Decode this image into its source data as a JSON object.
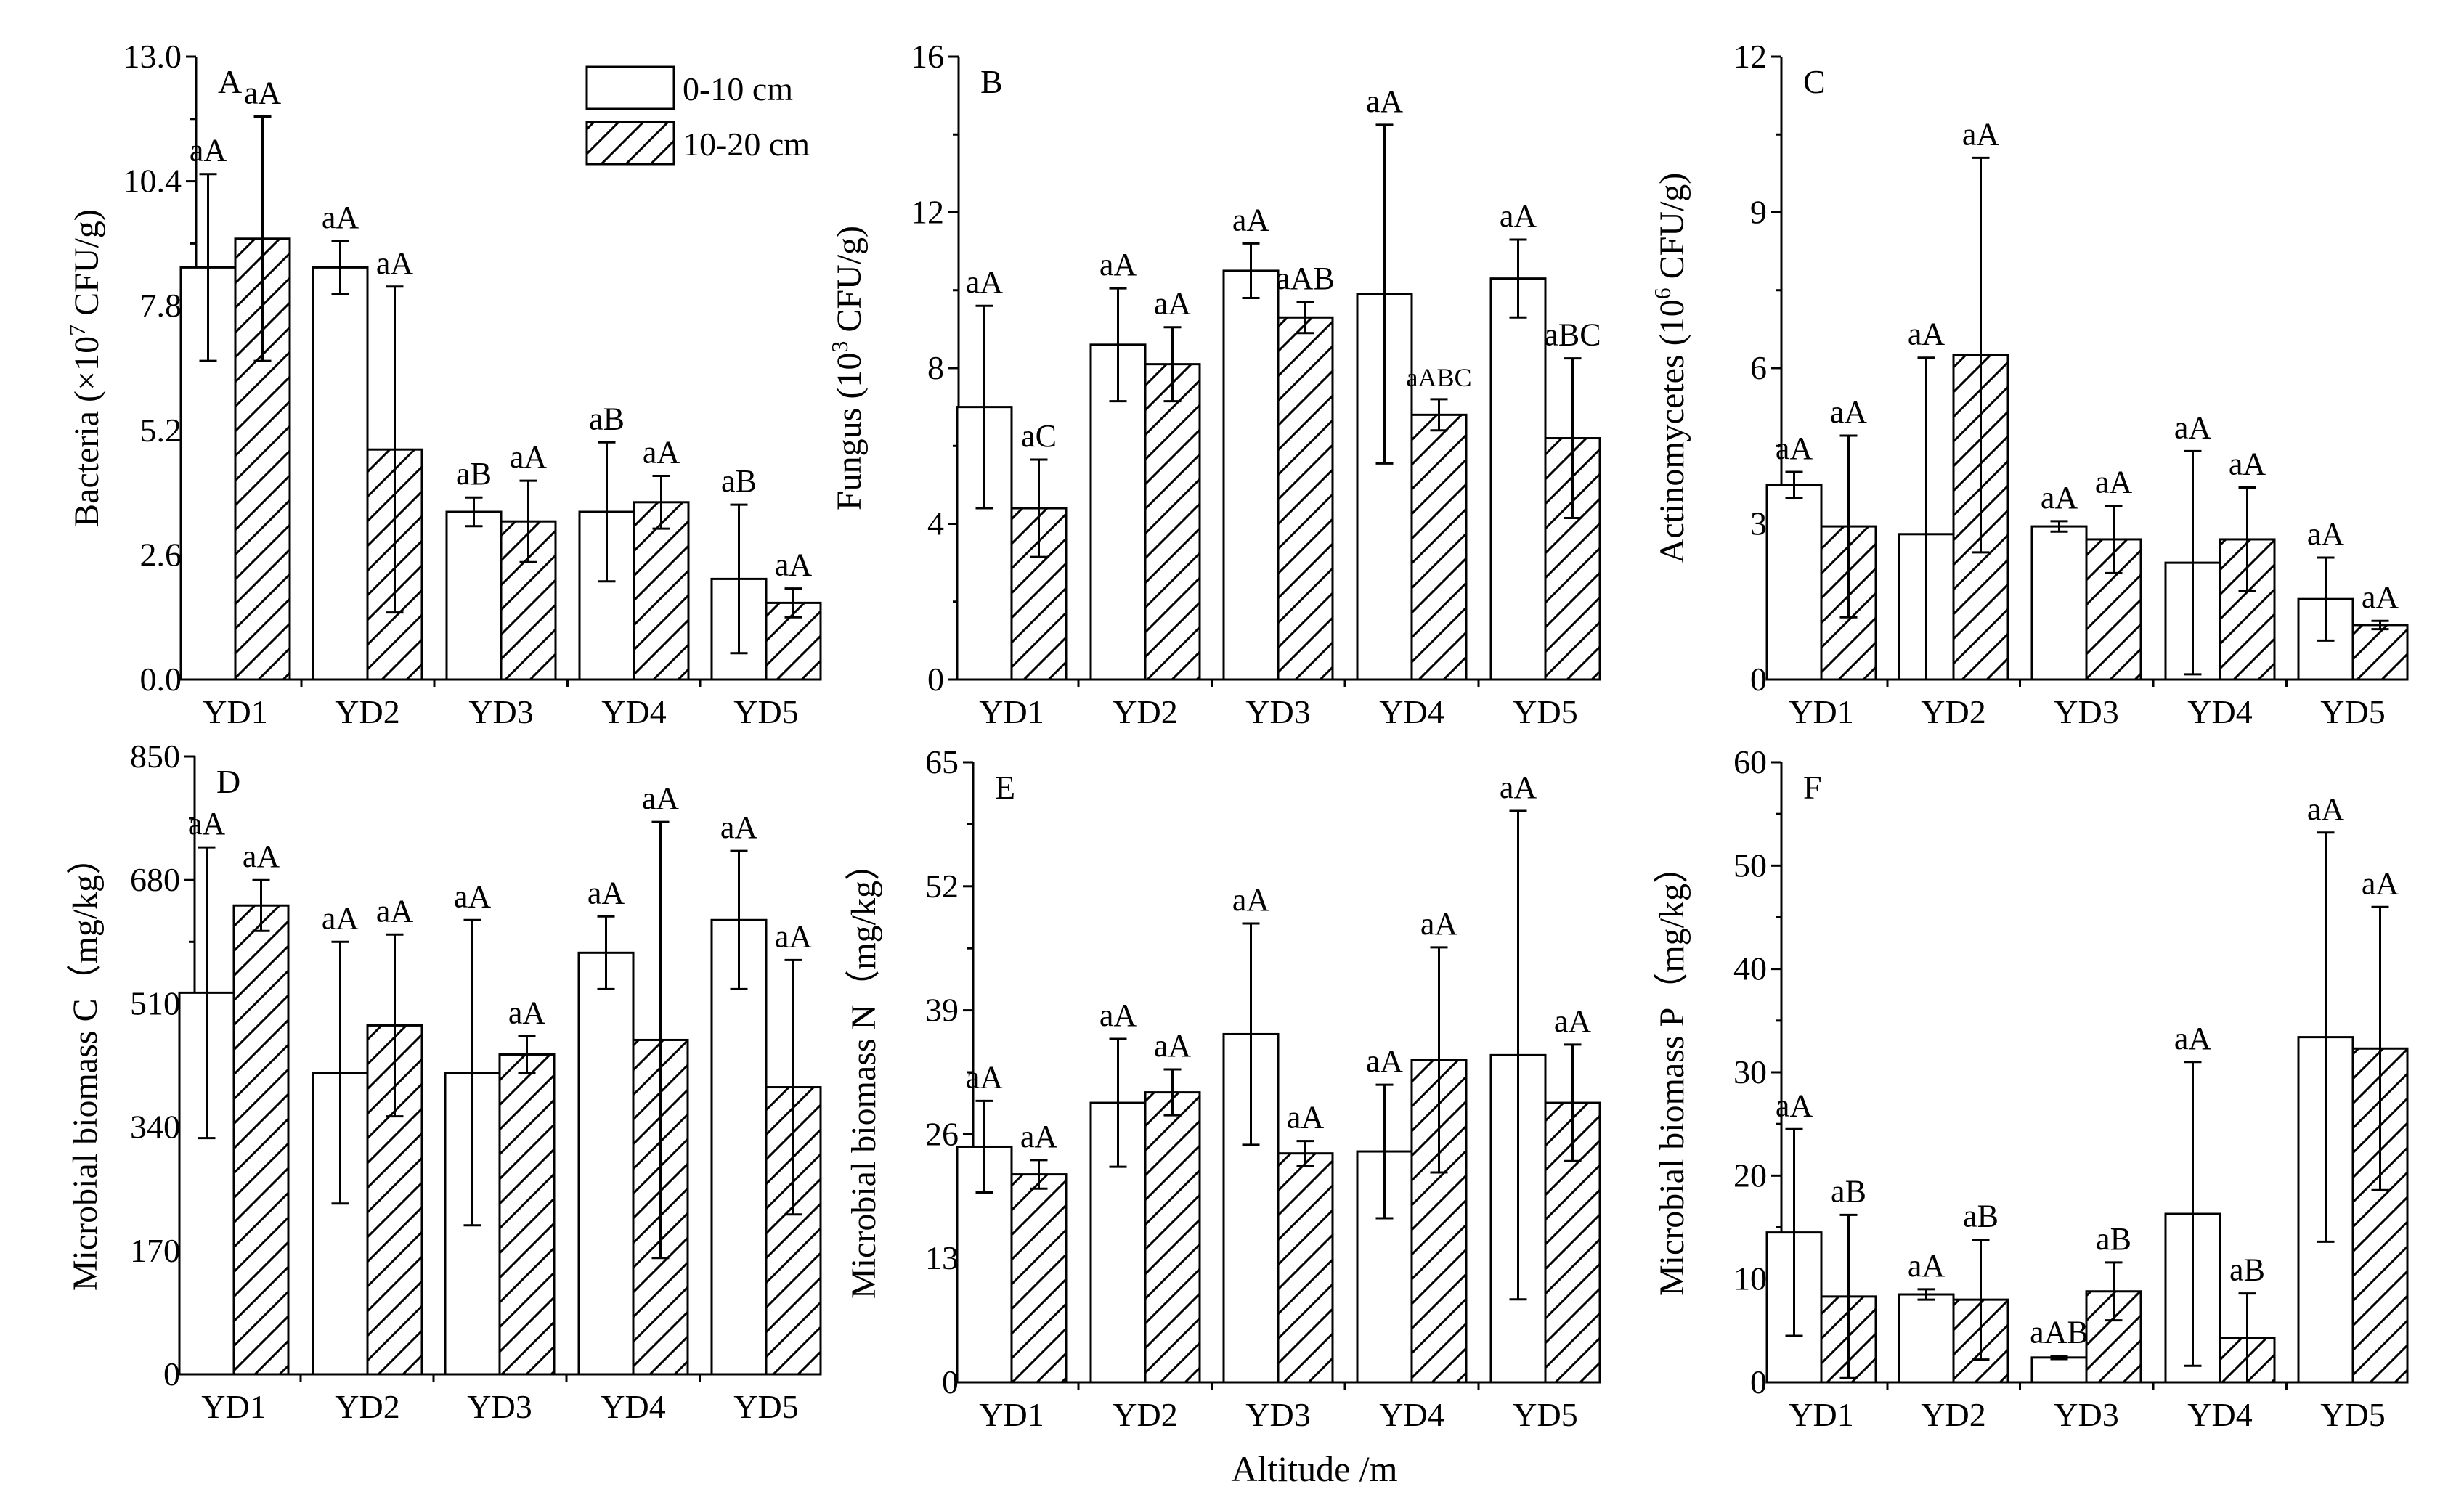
{
  "figure": {
    "xlabel": "Altitude /m",
    "legend": [
      {
        "label": "0-10 cm",
        "pattern": "open"
      },
      {
        "label": "10-20 cm",
        "pattern": "hatch"
      }
    ]
  },
  "chart_data": [
    {
      "type": "bar",
      "panel": "A",
      "ylabel_main": "Bacteria (×10",
      "ylabel_sup": "7",
      "ylabel_tail": " CFU/g)",
      "categories": [
        "YD1",
        "YD2",
        "YD3",
        "YD4",
        "YD5"
      ],
      "ylim": [
        0,
        13
      ],
      "yticks": [
        "0.0",
        "2.6",
        "5.2",
        "7.8",
        "10.4",
        "13.0"
      ],
      "series": [
        {
          "name": "0-10 cm",
          "values": [
            8.6,
            8.6,
            3.5,
            3.5,
            2.1
          ],
          "errors": [
            1.95,
            0.55,
            0.3,
            1.45,
            1.55
          ],
          "labels": [
            "aA",
            "aA",
            "aB",
            "aB",
            "aB"
          ]
        },
        {
          "name": "10-20 cm",
          "values": [
            9.2,
            4.8,
            3.3,
            3.7,
            1.6
          ],
          "errors": [
            2.55,
            3.4,
            0.85,
            0.55,
            0.3
          ],
          "labels": [
            "aA",
            "aA",
            "aA",
            "aA",
            "aA"
          ]
        }
      ]
    },
    {
      "type": "bar",
      "panel": "B",
      "ylabel_main": "Fungus (10",
      "ylabel_sup": "3",
      "ylabel_tail": " CFU/g)",
      "categories": [
        "YD1",
        "YD2",
        "YD3",
        "YD4",
        "YD5"
      ],
      "ylim": [
        0,
        16
      ],
      "yticks": [
        "0",
        "4",
        "8",
        "12",
        "16"
      ],
      "series": [
        {
          "name": "0-10 cm",
          "values": [
            7.0,
            8.6,
            10.5,
            9.9,
            10.3
          ],
          "errors": [
            2.6,
            1.45,
            0.7,
            4.35,
            1.0
          ],
          "labels": [
            "aA",
            "aA",
            "aA",
            "aA",
            "aA"
          ]
        },
        {
          "name": "10-20 cm",
          "values": [
            4.4,
            8.1,
            9.3,
            6.8,
            6.2
          ],
          "errors": [
            1.25,
            0.95,
            0.4,
            0.4,
            2.05
          ],
          "labels": [
            "aC",
            "aA",
            "aAB",
            "aABC",
            "aBC"
          ]
        }
      ]
    },
    {
      "type": "bar",
      "panel": "C",
      "ylabel_main": "Actinomycetes (10",
      "ylabel_sup": "6",
      "ylabel_tail": " CFU/g)",
      "categories": [
        "YD1",
        "YD2",
        "YD3",
        "YD4",
        "YD5"
      ],
      "ylim": [
        0,
        12
      ],
      "yticks": [
        "0",
        "3",
        "6",
        "9",
        "12"
      ],
      "series": [
        {
          "name": "0-10 cm",
          "values": [
            3.75,
            2.8,
            2.95,
            2.25,
            1.55
          ],
          "errors": [
            0.25,
            3.4,
            0.1,
            2.15,
            0.8
          ],
          "labels": [
            "aA",
            "aA",
            "aA",
            "aA",
            "aA"
          ]
        },
        {
          "name": "10-20 cm",
          "values": [
            2.95,
            6.25,
            2.7,
            2.7,
            1.05
          ],
          "errors": [
            1.75,
            3.8,
            0.65,
            1.0,
            0.08
          ],
          "labels": [
            "aA",
            "aA",
            "aA",
            "aA",
            "aA"
          ]
        }
      ]
    },
    {
      "type": "bar",
      "panel": "D",
      "ylabel_main": "Microbial biomass C（mg/kg）",
      "ylabel_sup": "",
      "ylabel_tail": "",
      "categories": [
        "YD1",
        "YD2",
        "YD3",
        "YD4",
        "YD5"
      ],
      "ylim": [
        0,
        850
      ],
      "yticks": [
        "0",
        "170",
        "340",
        "510",
        "680",
        "850"
      ],
      "series": [
        {
          "name": "0-10 cm",
          "values": [
            525,
            415,
            415,
            580,
            625
          ],
          "errors": [
            200,
            180,
            210,
            50,
            95
          ],
          "labels": [
            "aA",
            "aA",
            "aA",
            "aA",
            "aA"
          ]
        },
        {
          "name": "10-20 cm",
          "values": [
            645,
            480,
            440,
            460,
            395
          ],
          "errors": [
            35,
            125,
            25,
            300,
            175
          ],
          "labels": [
            "aA",
            "aA",
            "aA",
            "aA",
            "aA"
          ]
        }
      ]
    },
    {
      "type": "bar",
      "panel": "E",
      "ylabel_main": "Microbial biomass N（mg/kg）",
      "ylabel_sup": "",
      "ylabel_tail": "",
      "categories": [
        "YD1",
        "YD2",
        "YD3",
        "YD4",
        "YD5"
      ],
      "ylim": [
        0,
        65
      ],
      "yticks": [
        "0",
        "13",
        "26",
        "39",
        "52",
        "65"
      ],
      "series": [
        {
          "name": "0-10 cm",
          "values": [
            24.7,
            29.3,
            36.5,
            24.2,
            34.3
          ],
          "errors": [
            4.8,
            6.7,
            11.6,
            7.0,
            25.6
          ],
          "labels": [
            "aA",
            "aA",
            "aA",
            "aA",
            "aA"
          ]
        },
        {
          "name": "10-20 cm",
          "values": [
            21.8,
            30.4,
            24.0,
            33.8,
            29.3
          ],
          "errors": [
            1.5,
            2.4,
            1.3,
            11.8,
            6.1
          ],
          "labels": [
            "aA",
            "aA",
            "aA",
            "aA",
            "aA"
          ]
        }
      ]
    },
    {
      "type": "bar",
      "panel": "F",
      "ylabel_main": "Microbial biomass P（mg/kg）",
      "ylabel_sup": "",
      "ylabel_tail": "",
      "categories": [
        "YD1",
        "YD2",
        "YD3",
        "YD4",
        "YD5"
      ],
      "ylim": [
        0,
        60
      ],
      "yticks": [
        "0",
        "10",
        "20",
        "30",
        "40",
        "50",
        "60"
      ],
      "series": [
        {
          "name": "0-10 cm",
          "values": [
            14.5,
            8.5,
            2.4,
            16.3,
            33.4
          ],
          "errors": [
            10.0,
            0.5,
            0.15,
            14.7,
            19.8
          ],
          "labels": [
            "aA",
            "aA",
            "aAB",
            "aA",
            "aA"
          ]
        },
        {
          "name": "10-20 cm",
          "values": [
            8.3,
            8.0,
            8.8,
            4.3,
            32.3
          ],
          "errors": [
            7.9,
            5.8,
            2.8,
            4.3,
            13.7
          ],
          "labels": [
            "aB",
            "aB",
            "aB",
            "aB",
            "aA"
          ]
        }
      ]
    }
  ]
}
